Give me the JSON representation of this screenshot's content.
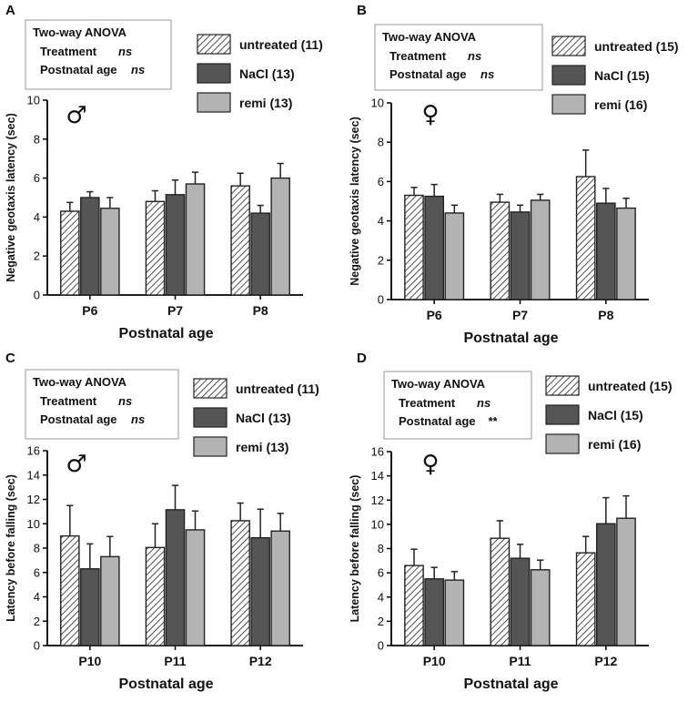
{
  "figure": {
    "width": 767,
    "height": 766
  },
  "colors": {
    "untreated": "#ffffff",
    "nacl": "#555555",
    "remi": "#b3b3b3",
    "axis": "#000000",
    "box_border": "#999999"
  },
  "chart_data": [
    {
      "id": "A",
      "type": "bar",
      "letter": "A",
      "sex_symbol": "♂",
      "anova": {
        "title": "Two-way ANOVA",
        "rows": [
          {
            "label": "Treatment",
            "value": "ns"
          },
          {
            "label": "Postnatal age",
            "value": "ns"
          }
        ]
      },
      "categories": [
        "P6",
        "P7",
        "P8"
      ],
      "xlabel": "Postnatal age",
      "ylabel": "Negative geotaxis latency (sec)",
      "ylim": [
        0,
        10
      ],
      "yticks": [
        0,
        2,
        4,
        6,
        8,
        10
      ],
      "series": [
        {
          "key": "untreated",
          "name": "untreated (11)",
          "pattern": "hatch",
          "values": [
            4.3,
            4.8,
            5.6
          ],
          "errors": [
            0.45,
            0.55,
            0.65
          ]
        },
        {
          "key": "nacl",
          "name": "NaCl (13)",
          "pattern": "nacl",
          "values": [
            5.0,
            5.15,
            4.2
          ],
          "errors": [
            0.3,
            0.75,
            0.4
          ]
        },
        {
          "key": "remi",
          "name": "remi (13)",
          "pattern": "remi",
          "values": [
            4.45,
            5.7,
            6.0
          ],
          "errors": [
            0.55,
            0.6,
            0.75
          ]
        }
      ]
    },
    {
      "id": "B",
      "type": "bar",
      "letter": "B",
      "sex_symbol": "♀",
      "anova": {
        "title": "Two-way ANOVA",
        "rows": [
          {
            "label": "Treatment",
            "value": "ns"
          },
          {
            "label": "Postnatal age",
            "value": "ns"
          }
        ]
      },
      "categories": [
        "P6",
        "P7",
        "P8"
      ],
      "xlabel": "Postnatal age",
      "ylabel": "Negative geotaxis latency (sec)",
      "ylim": [
        0,
        10
      ],
      "yticks": [
        0,
        2,
        4,
        6,
        8,
        10
      ],
      "series": [
        {
          "key": "untreated",
          "name": "untreated (15)",
          "pattern": "hatch",
          "values": [
            5.3,
            4.95,
            6.25
          ],
          "errors": [
            0.4,
            0.4,
            1.35
          ]
        },
        {
          "key": "nacl",
          "name": "NaCl (15)",
          "pattern": "nacl",
          "values": [
            5.25,
            4.45,
            4.9
          ],
          "errors": [
            0.6,
            0.35,
            0.75
          ]
        },
        {
          "key": "remi",
          "name": "remi (16)",
          "pattern": "remi",
          "values": [
            4.4,
            5.05,
            4.65
          ],
          "errors": [
            0.4,
            0.3,
            0.5
          ]
        }
      ]
    },
    {
      "id": "C",
      "type": "bar",
      "letter": "C",
      "sex_symbol": "♂",
      "anova": {
        "title": "Two-way ANOVA",
        "rows": [
          {
            "label": "Treatment",
            "value": "ns"
          },
          {
            "label": "Postnatal age",
            "value": "ns"
          }
        ]
      },
      "categories": [
        "P10",
        "P11",
        "P12"
      ],
      "xlabel": "Postnatal age",
      "ylabel": "Latency before falling (sec)",
      "ylim": [
        0,
        16
      ],
      "yticks": [
        0,
        2,
        4,
        6,
        8,
        10,
        12,
        14,
        16
      ],
      "series": [
        {
          "key": "untreated",
          "name": "untreated (11)",
          "pattern": "hatch",
          "values": [
            9.0,
            8.05,
            10.25
          ],
          "errors": [
            2.5,
            1.95,
            1.45
          ]
        },
        {
          "key": "nacl",
          "name": "NaCl (13)",
          "pattern": "nacl",
          "values": [
            6.3,
            11.15,
            8.85
          ],
          "errors": [
            2.05,
            2.0,
            2.35
          ]
        },
        {
          "key": "remi",
          "name": "remi (13)",
          "pattern": "remi",
          "values": [
            7.3,
            9.5,
            9.4
          ],
          "errors": [
            1.65,
            1.55,
            1.45
          ]
        }
      ]
    },
    {
      "id": "D",
      "type": "bar",
      "letter": "D",
      "sex_symbol": "♀",
      "anova": {
        "title": "Two-way ANOVA",
        "rows": [
          {
            "label": "Treatment",
            "value": "ns"
          },
          {
            "label": "Postnatal age",
            "value": "**"
          }
        ]
      },
      "categories": [
        "P10",
        "P11",
        "P12"
      ],
      "xlabel": "Postnatal age",
      "ylabel": "Latency before falling (sec)",
      "ylim": [
        0,
        16
      ],
      "yticks": [
        0,
        2,
        4,
        6,
        8,
        10,
        12,
        14,
        16
      ],
      "series": [
        {
          "key": "untreated",
          "name": "untreated (15)",
          "pattern": "hatch",
          "values": [
            6.6,
            8.85,
            7.65
          ],
          "errors": [
            1.35,
            1.45,
            1.35
          ]
        },
        {
          "key": "nacl",
          "name": "NaCl (15)",
          "pattern": "nacl",
          "values": [
            5.5,
            7.2,
            10.05
          ],
          "errors": [
            0.95,
            1.15,
            2.15
          ]
        },
        {
          "key": "remi",
          "name": "remi (16)",
          "pattern": "remi",
          "values": [
            5.4,
            6.25,
            10.5
          ],
          "errors": [
            0.7,
            0.8,
            1.85
          ]
        }
      ]
    }
  ]
}
